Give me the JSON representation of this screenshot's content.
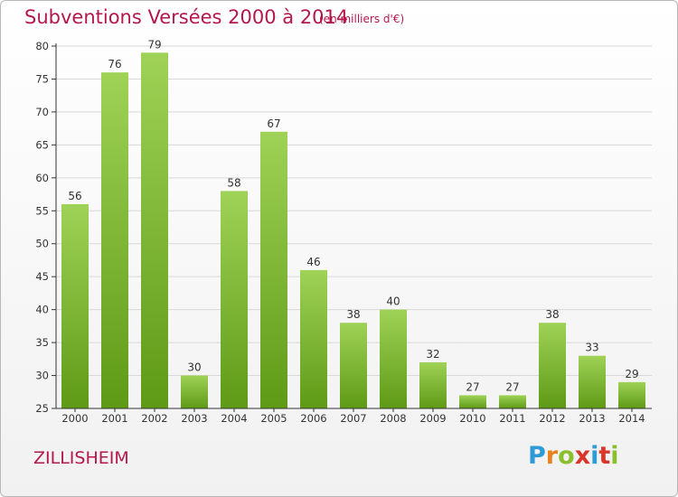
{
  "header": {
    "title": "Subventions Versées 2000 à 2014",
    "unit_note": "(en milliers d'€)"
  },
  "footer": {
    "town": "ZILLISHEIM",
    "logo": "Proxiti"
  },
  "colors": {
    "title": "#b5174b",
    "bar_top": "#9fd256",
    "bar_bottom": "#5e9a16",
    "grid": "#d8d8d8",
    "axis": "#333333"
  },
  "chart_data": {
    "type": "bar",
    "title": "Subventions Versées 2000 à 2014",
    "subtitle": "(en milliers d'€)",
    "xlabel": "",
    "ylabel": "",
    "categories": [
      "2000",
      "2001",
      "2002",
      "2003",
      "2004",
      "2005",
      "2006",
      "2007",
      "2008",
      "2009",
      "2010",
      "2011",
      "2012",
      "2013",
      "2014"
    ],
    "values": [
      56,
      76,
      79,
      30,
      58,
      67,
      46,
      38,
      40,
      32,
      27,
      27,
      38,
      33,
      29
    ],
    "ylim": [
      25,
      80
    ],
    "yticks": [
      25,
      30,
      35,
      40,
      45,
      50,
      55,
      60,
      65,
      70,
      75,
      80
    ],
    "grid": true,
    "legend": "none"
  }
}
